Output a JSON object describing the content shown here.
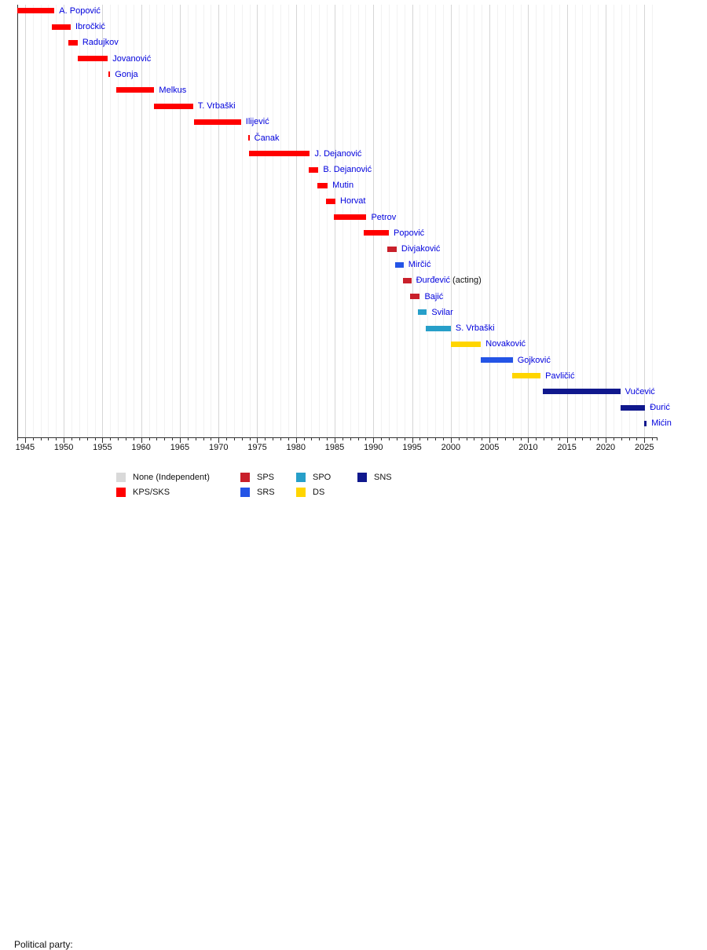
{
  "chart_data": {
    "type": "bar",
    "subtype": "timeline",
    "title": "",
    "xlabel": "",
    "ylabel": "",
    "grid": true,
    "x_axis": {
      "min": 1944,
      "max": 2026.6,
      "major_tick_step": 5,
      "minor_tick_step": 1,
      "ticks": [
        1945,
        1950,
        1955,
        1960,
        1965,
        1970,
        1975,
        1980,
        1985,
        1990,
        1995,
        2000,
        2005,
        2010,
        2015,
        2020,
        2025
      ],
      "tick_labels": [
        "1945",
        "1950",
        "1955",
        "1960",
        "1965",
        "1970",
        "1975",
        "1980",
        "1985",
        "1990",
        "1995",
        "2000",
        "2005",
        "2010",
        "2015",
        "2020",
        "2025"
      ]
    },
    "party_colors": {
      "none": "#d9d9d9",
      "kps_sks": "#ff0000",
      "sps": "#c9202b",
      "srs": "#2454e6",
      "spo": "#279fc9",
      "ds": "#ffd500",
      "sns": "#10188d"
    },
    "series": [
      {
        "label": "A. Popović",
        "party": "kps_sks",
        "start": 1944.0,
        "end": 1948.8
      },
      {
        "label": "Ibročkić",
        "party": "kps_sks",
        "start": 1948.5,
        "end": 1950.9
      },
      {
        "label": "Radujkov",
        "party": "kps_sks",
        "start": 1950.6,
        "end": 1951.8
      },
      {
        "label": "Jovanović",
        "party": "kps_sks",
        "start": 1951.8,
        "end": 1955.7
      },
      {
        "label": "Gonja",
        "party": "kps_sks",
        "start": 1955.8,
        "end": 1956.0
      },
      {
        "label": "Melkus",
        "party": "kps_sks",
        "start": 1956.8,
        "end": 1961.7
      },
      {
        "label": "T. Vrbaški",
        "party": "kps_sks",
        "start": 1961.7,
        "end": 1966.7
      },
      {
        "label": "Ilijević",
        "party": "kps_sks",
        "start": 1966.8,
        "end": 1972.9
      },
      {
        "label": "Čanak",
        "party": "kps_sks",
        "start": 1973.8,
        "end": 1974.0
      },
      {
        "label": "J. Dejanović",
        "party": "kps_sks",
        "start": 1973.9,
        "end": 1981.8
      },
      {
        "label": "B. Dejanović",
        "party": "kps_sks",
        "start": 1981.6,
        "end": 1982.9
      },
      {
        "label": "Mutin",
        "party": "kps_sks",
        "start": 1982.8,
        "end": 1984.1
      },
      {
        "label": "Horvat",
        "party": "kps_sks",
        "start": 1983.9,
        "end": 1985.1
      },
      {
        "label": "Petrov",
        "party": "kps_sks",
        "start": 1984.9,
        "end": 1989.1
      },
      {
        "label": "Popović",
        "party": "kps_sks",
        "start": 1988.8,
        "end": 1992.0
      },
      {
        "label": "Divjaković",
        "party": "sps",
        "start": 1991.8,
        "end": 1993.0
      },
      {
        "label": "Mirčić",
        "party": "srs",
        "start": 1992.8,
        "end": 1993.9
      },
      {
        "label": "Đurđević",
        "suffix": " (acting)",
        "party": "sps",
        "start": 1993.8,
        "end": 1994.9
      },
      {
        "label": "Bajić",
        "party": "sps",
        "start": 1994.7,
        "end": 1996.0
      },
      {
        "label": "Svilar",
        "party": "spo",
        "start": 1995.8,
        "end": 1996.9
      },
      {
        "label": "S. Vrbaški",
        "party": "spo",
        "start": 1996.8,
        "end": 2000.0
      },
      {
        "label": "Novaković",
        "party": "ds",
        "start": 2000.0,
        "end": 2003.9
      },
      {
        "label": "Gojković",
        "party": "srs",
        "start": 2003.9,
        "end": 2008.0
      },
      {
        "label": "Pavličić",
        "party": "ds",
        "start": 2007.9,
        "end": 2011.6
      },
      {
        "label": "Vučević",
        "party": "sns",
        "start": 2011.9,
        "end": 2021.9
      },
      {
        "label": "Đurić",
        "party": "sns",
        "start": 2021.9,
        "end": 2025.1
      },
      {
        "label": "Mićin",
        "party": "sns",
        "start": 2025.0,
        "end": 2025.3
      }
    ]
  },
  "legend": {
    "title": "Political party:",
    "position": "bottom-left",
    "entries": [
      {
        "label": "None (Independent)",
        "party": "none",
        "col": 0,
        "row": 0
      },
      {
        "label": "KPS/SKS",
        "party": "kps_sks",
        "col": 0,
        "row": 1
      },
      {
        "label": "SPS",
        "party": "sps",
        "col": 1,
        "row": 0
      },
      {
        "label": "SRS",
        "party": "srs",
        "col": 1,
        "row": 1
      },
      {
        "label": "SPO",
        "party": "spo",
        "col": 2,
        "row": 0
      },
      {
        "label": "DS",
        "party": "ds",
        "col": 2,
        "row": 1
      },
      {
        "label": "SNS",
        "party": "sns",
        "col": 3,
        "row": 0
      }
    ]
  }
}
